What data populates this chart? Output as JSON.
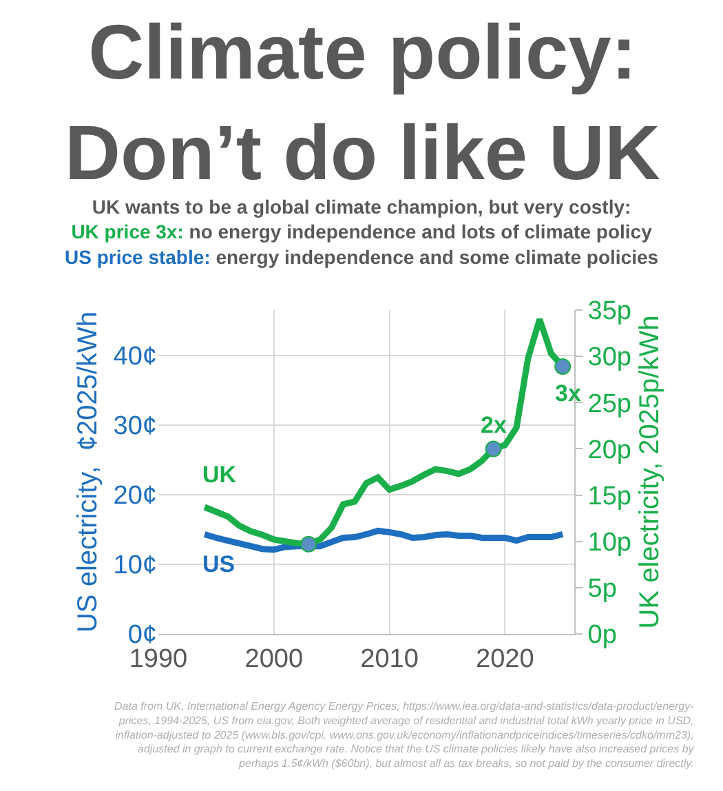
{
  "chart_data": {
    "type": "line",
    "title": "Climate policy:\nDon’t do like UK",
    "subtitle": "UK wants to be a global climate champion, but very costly:\nUK price 3x: no energy independence and lots of climate policy\nUS price stable: energy independence and some climate policies",
    "ylabel": "US electricity,  ¢2025/kWh",
    "y2label": "UK electricity, 2025p/kWh",
    "x": [
      1994,
      1995,
      1996,
      1997,
      1998,
      1999,
      2000,
      2001,
      2002,
      2003,
      2004,
      2005,
      2006,
      2007,
      2008,
      2009,
      2010,
      2011,
      2012,
      2013,
      2014,
      2015,
      2016,
      2017,
      2018,
      2019,
      2020,
      2021,
      2022,
      2023,
      2024,
      2025
    ],
    "series": [
      {
        "name": "US",
        "color": "#1f6fc0",
        "values": [
          14.3,
          13.8,
          13.4,
          13.0,
          12.6,
          12.2,
          12.1,
          12.5,
          12.6,
          12.6,
          12.6,
          13.2,
          13.8,
          13.9,
          14.3,
          14.8,
          14.6,
          14.3,
          13.8,
          13.9,
          14.2,
          14.3,
          14.1,
          14.1,
          13.8,
          13.8,
          13.8,
          13.4,
          13.9,
          13.9,
          13.9,
          14.3
        ]
      },
      {
        "name": "UK",
        "color": "#1aaf4b",
        "axis": "y2",
        "values": [
          13.7,
          13.2,
          12.7,
          11.7,
          11.1,
          10.7,
          10.2,
          10.0,
          9.8,
          9.7,
          10.2,
          11.5,
          14.0,
          14.3,
          16.3,
          16.9,
          15.6,
          16.0,
          16.5,
          17.2,
          17.8,
          17.6,
          17.3,
          17.8,
          18.7,
          20.0,
          20.4,
          22.3,
          29.8,
          34.0,
          30.3,
          28.9
        ]
      },
      {
        "type": "scatter",
        "color": "#5b8ec4",
        "axis": "y2",
        "marker": "circle",
        "x": [
          2003,
          2019,
          2025
        ],
        "values": [
          9.7,
          20.0,
          28.9
        ]
      }
    ],
    "xlim": [
      1990,
      2026
    ],
    "xticks": [
      1990,
      2000,
      2010,
      2020
    ],
    "ylim": [
      0,
      46.5
    ],
    "yticks": [
      {
        "value": 0,
        "label": "0¢"
      },
      {
        "value": 10,
        "label": "10¢"
      },
      {
        "value": 20,
        "label": "20¢"
      },
      {
        "value": 30,
        "label": "30¢"
      },
      {
        "value": 40,
        "label": "40¢"
      }
    ],
    "y2lim": [
      0,
      35
    ],
    "y2ticks": [
      {
        "value": 0,
        "label": "0p"
      },
      {
        "value": 5,
        "label": "5p"
      },
      {
        "value": 10,
        "label": "10p"
      },
      {
        "value": 15,
        "label": "15p"
      },
      {
        "value": 20,
        "label": "20p"
      },
      {
        "value": 25,
        "label": "25p"
      },
      {
        "value": 30,
        "label": "30p"
      },
      {
        "value": 35,
        "label": "35p"
      }
    ],
    "grid": true,
    "marker": "none",
    "line_style": "solid",
    "annotations": [
      "2x",
      "3x",
      "Data from UK, International Energy Agency Energy Prices, https://www.iea.org/data-and-statistics/data-product/energy-prices, 1994-2025, US from eia.gov, Both weighted average of residential and industrial total kWh yearly price in USD, inflation-adjusted to 2025 (www.bls.gov/cpi, www.ons.gov.uk/economy/inflationandpriceindices/timeseries/cdko/mm23), adjusted in graph to current exchange rate. Notice that the US climate policies likely have also increased prices by perhaps 1.5¢/kWh ($60bn), but almost all as tax breaks, so not paid by the consumer directly."
    ]
  }
}
